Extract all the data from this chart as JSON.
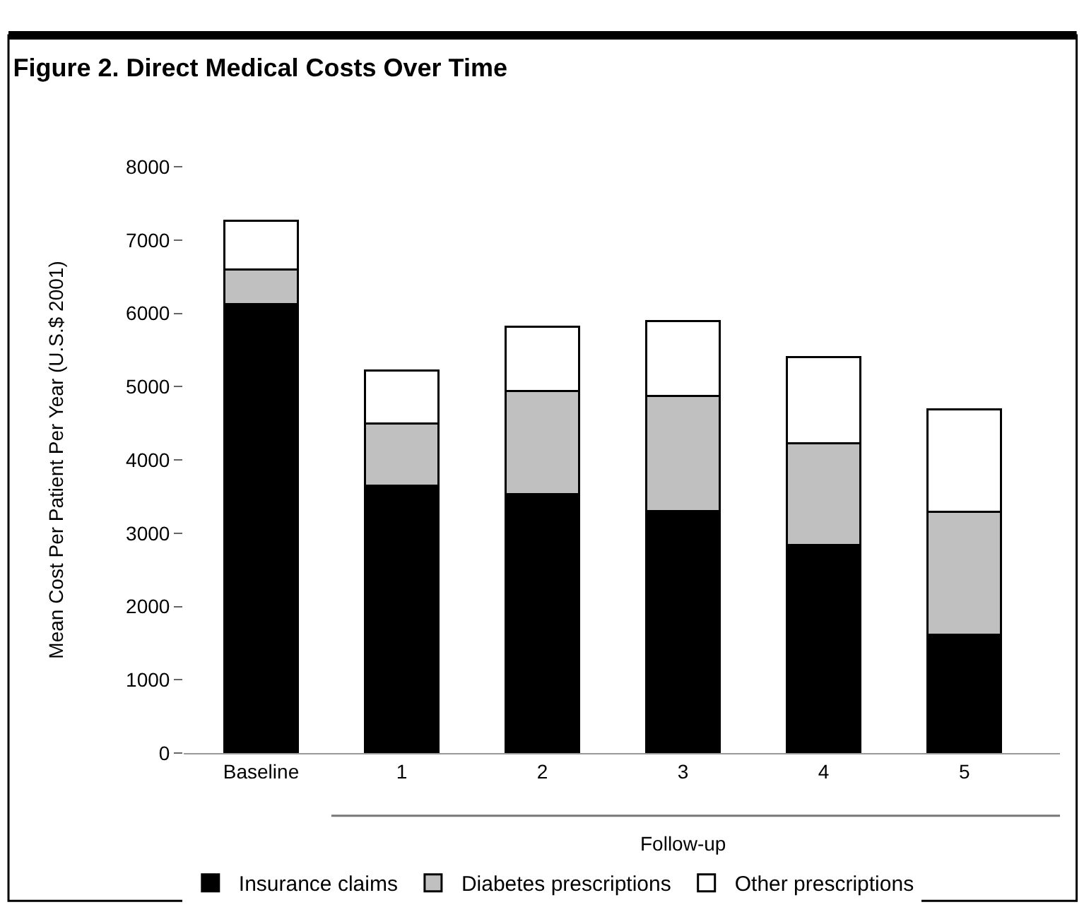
{
  "chart_data": {
    "type": "bar",
    "title": "Figure 2. Direct Medical Costs Over Time",
    "ylabel": "Mean Cost Per Patient Per Year (U.S.$ 2001)",
    "categories": [
      "Baseline",
      "1",
      "2",
      "3",
      "4",
      "5"
    ],
    "stacked": true,
    "series": [
      {
        "name": "Insurance claims",
        "color": "#000000",
        "values": [
          6130,
          3650,
          3530,
          3300,
          2840,
          1610
        ]
      },
      {
        "name": "Diabetes prescriptions",
        "color": "#c0c0c0",
        "values": [
          470,
          850,
          1410,
          1570,
          1390,
          1680
        ]
      },
      {
        "name": "Other prescriptions",
        "color": "#ffffff",
        "values": [
          660,
          720,
          880,
          1020,
          1170,
          1400
        ]
      }
    ],
    "ylim": [
      0,
      8000
    ],
    "yticks": [
      0,
      1000,
      2000,
      3000,
      4000,
      5000,
      6000,
      7000,
      8000
    ],
    "legend": "bottom",
    "annotations": [
      "Follow-up"
    ]
  }
}
